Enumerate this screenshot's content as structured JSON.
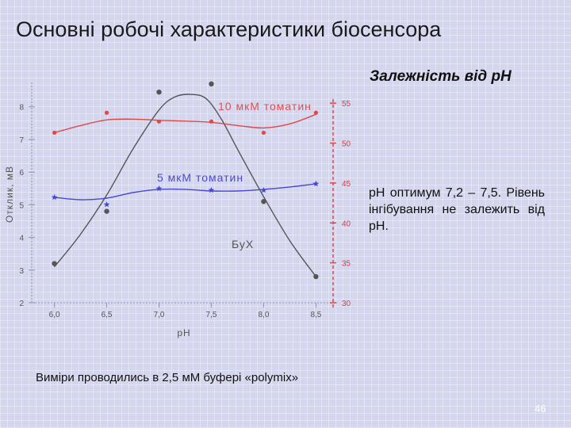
{
  "slide": {
    "title": "Основні робочі характеристики біосенсора",
    "section_title": "Залежність від рН",
    "description": "рН оптимум 7,2 – 7,5. Рівень інгібування не залежить від рН.",
    "footnote": "Виміри проводились в 2,5 мМ буфері «polymix»",
    "page_number": "46"
  },
  "colors": {
    "red_series": "#e04848",
    "blue_series": "#4848d0",
    "gray_series": "#555555"
  },
  "chart_data": {
    "type": "line",
    "xlabel": "pH",
    "ylabel": "Отклик, мВ",
    "x": [
      6.0,
      6.5,
      7.0,
      7.5,
      8.0,
      8.5
    ],
    "x_tick_labels": [
      "6,0",
      "6,5",
      "7,0",
      "7,5",
      "8,0",
      "8,5"
    ],
    "xlim": [
      5.95,
      8.55
    ],
    "ylim": [
      2,
      8.6
    ],
    "y_ticks": [
      2,
      3,
      4,
      5,
      6,
      7,
      8
    ],
    "y2lim": [
      30,
      57
    ],
    "y2_ticks": [
      30,
      35,
      40,
      45,
      50,
      55
    ],
    "series": [
      {
        "name": "БуХ",
        "axis": "left",
        "color": "gray",
        "marker": "circle",
        "values": [
          3.2,
          4.8,
          8.45,
          8.7,
          5.1,
          2.8
        ],
        "curve": [
          [
            6.0,
            3.1
          ],
          [
            6.25,
            4.1
          ],
          [
            6.5,
            5.3
          ],
          [
            6.75,
            6.7
          ],
          [
            7.0,
            7.9
          ],
          [
            7.15,
            8.3
          ],
          [
            7.3,
            8.38
          ],
          [
            7.45,
            8.25
          ],
          [
            7.6,
            7.6
          ],
          [
            7.75,
            6.7
          ],
          [
            8.0,
            5.25
          ],
          [
            8.25,
            3.9
          ],
          [
            8.5,
            2.8
          ]
        ]
      },
      {
        "name": "10 мкМ томатин",
        "axis": "right",
        "color": "red",
        "marker": "dot",
        "values": [
          51.3,
          53.8,
          52.7,
          52.7,
          51.3,
          53.8
        ],
        "curve": [
          [
            6.0,
            51.3
          ],
          [
            6.25,
            52.2
          ],
          [
            6.5,
            52.9
          ],
          [
            6.75,
            53.0
          ],
          [
            7.0,
            52.85
          ],
          [
            7.25,
            52.75
          ],
          [
            7.5,
            52.6
          ],
          [
            7.75,
            52.2
          ],
          [
            8.0,
            51.9
          ],
          [
            8.25,
            52.4
          ],
          [
            8.5,
            53.6
          ]
        ]
      },
      {
        "name": "5 мкМ томатин",
        "axis": "right",
        "color": "blue",
        "marker": "star",
        "values": [
          43.2,
          42.3,
          44.3,
          44.1,
          44.1,
          44.9
        ],
        "curve": [
          [
            6.0,
            43.2
          ],
          [
            6.25,
            42.9
          ],
          [
            6.5,
            43.1
          ],
          [
            6.75,
            43.8
          ],
          [
            7.0,
            44.2
          ],
          [
            7.25,
            44.2
          ],
          [
            7.5,
            44.0
          ],
          [
            7.75,
            44.0
          ],
          [
            8.0,
            44.2
          ],
          [
            8.25,
            44.5
          ],
          [
            8.5,
            44.9
          ]
        ]
      }
    ]
  }
}
